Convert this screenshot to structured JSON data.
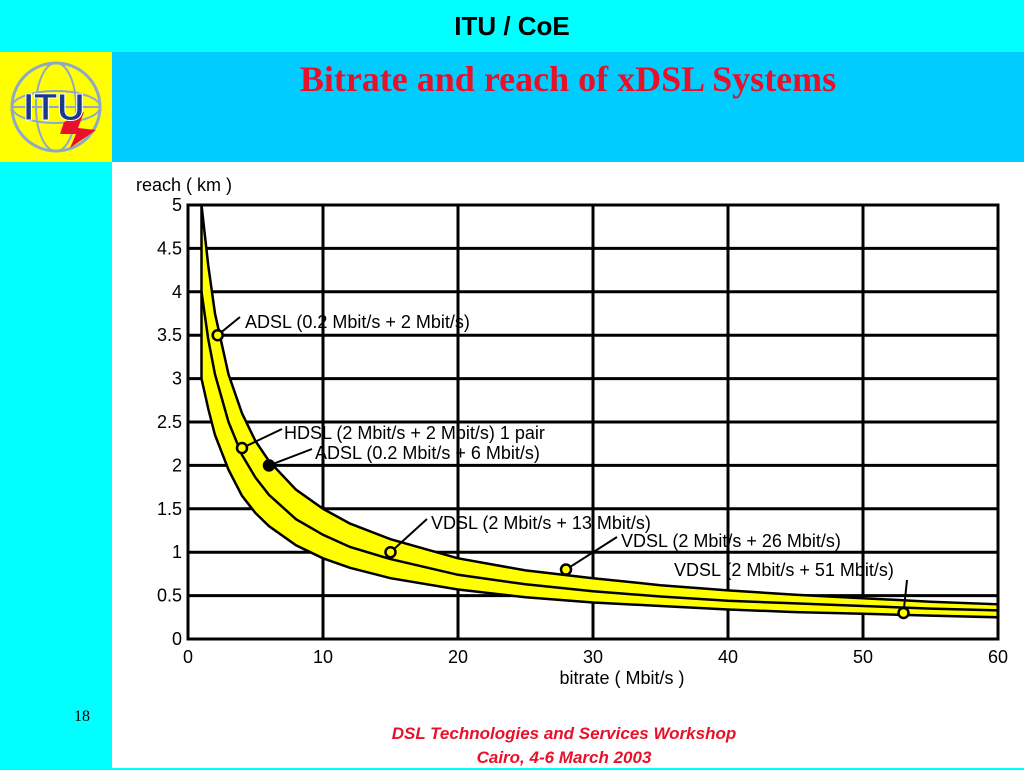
{
  "header": {
    "org_title": "ITU / CoE",
    "slide_title": "Bitrate and reach of xDSL Systems",
    "logo_text": "ITU"
  },
  "slide_number": "18",
  "footer": {
    "line1": "DSL Technologies and Services Workshop",
    "line2": "Cairo, 4-6  March 2003"
  },
  "colors": {
    "band": "#ffff00",
    "accent_red": "#e8102a",
    "background": "#00ffff",
    "header_band": "#00ccff"
  },
  "chart_data": {
    "type": "line",
    "xlabel": "bitrate ( Mbit/s )",
    "ylabel": "reach ( km )",
    "xlim": [
      0,
      60
    ],
    "ylim": [
      0,
      5
    ],
    "xticks": [
      0,
      10,
      20,
      30,
      40,
      50,
      60
    ],
    "yticks": [
      0,
      0.5,
      1,
      1.5,
      2,
      2.5,
      3,
      3.5,
      4,
      4.5,
      5
    ],
    "grid": true,
    "band_upper": {
      "x": [
        1,
        1.5,
        2,
        3,
        4,
        5,
        6,
        8,
        10,
        12,
        15,
        20,
        25,
        30,
        35,
        40,
        45,
        50,
        55,
        60
      ],
      "y": [
        5.0,
        4.3,
        3.75,
        3.05,
        2.6,
        2.28,
        2.05,
        1.72,
        1.5,
        1.33,
        1.15,
        0.93,
        0.79,
        0.7,
        0.62,
        0.56,
        0.51,
        0.47,
        0.43,
        0.4
      ]
    },
    "band_lower": {
      "x": [
        1,
        1.5,
        2,
        3,
        4,
        5,
        6,
        8,
        10,
        12,
        15,
        20,
        25,
        30,
        35,
        40,
        45,
        50,
        55,
        60
      ],
      "y": [
        3.0,
        2.65,
        2.35,
        1.95,
        1.65,
        1.45,
        1.3,
        1.08,
        0.93,
        0.82,
        0.7,
        0.57,
        0.48,
        0.42,
        0.38,
        0.34,
        0.31,
        0.29,
        0.27,
        0.25
      ]
    },
    "center_line": {
      "x": [
        1,
        1.5,
        2,
        3,
        4,
        5,
        6,
        8,
        10,
        12,
        15,
        20,
        25,
        30,
        35,
        40,
        45,
        50,
        55,
        60
      ],
      "y": [
        4.0,
        3.45,
        3.05,
        2.5,
        2.12,
        1.86,
        1.66,
        1.38,
        1.2,
        1.06,
        0.92,
        0.74,
        0.63,
        0.55,
        0.49,
        0.44,
        0.41,
        0.38,
        0.35,
        0.33
      ]
    },
    "points": [
      {
        "label": "ADSL (0.2 Mbit/s  + 2 Mbit/s)",
        "x": 2.2,
        "y": 3.5,
        "filled": false
      },
      {
        "label": "HDSL (2 Mbit/s + 2 Mbit/s) 1 pair",
        "x": 4,
        "y": 2.2,
        "filled": false
      },
      {
        "label": "ADSL (0.2 Mbit/s + 6 Mbit/s)",
        "x": 6,
        "y": 2.0,
        "filled": true
      },
      {
        "label": "VDSL (2 Mbit/s + 13 Mbit/s)",
        "x": 15,
        "y": 1.0,
        "filled": false
      },
      {
        "label": "VDSL (2 Mbit/s + 26 Mbit/s)",
        "x": 28,
        "y": 0.8,
        "filled": false
      },
      {
        "label": "VDSL (2 Mbit/s + 51 Mbit/s)",
        "x": 53,
        "y": 0.3,
        "filled": false
      }
    ]
  }
}
